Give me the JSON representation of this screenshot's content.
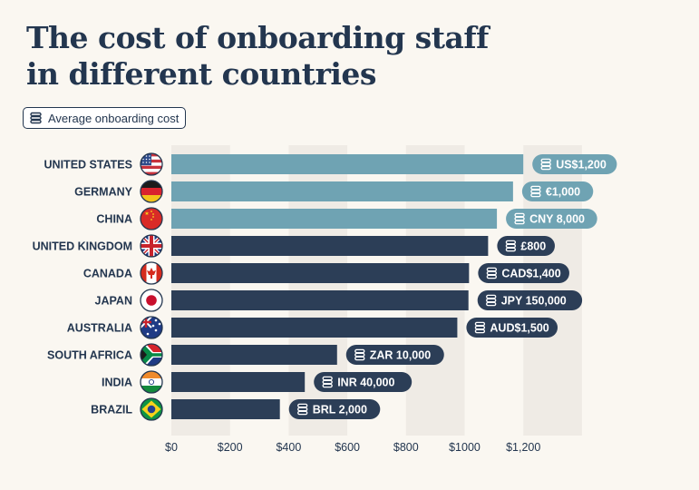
{
  "title": {
    "line1": "The cost of onboarding staff",
    "line2": "in different countries"
  },
  "legend": {
    "label": "Average onboarding cost",
    "icon": "coins-icon"
  },
  "colors": {
    "text": "#23364f",
    "dark_bar": "#2c3e57",
    "light_bar": "#6fa3b3",
    "band": "#efebe5",
    "background": "#faf7f1"
  },
  "chart_data": {
    "type": "bar",
    "orientation": "horizontal",
    "title": "The cost of onboarding staff in different countries",
    "xlabel": "",
    "ylabel": "",
    "xlim": [
      0,
      1400
    ],
    "xticks": [
      0,
      200,
      400,
      600,
      800,
      1000,
      1200
    ],
    "xtick_labels": [
      "$0",
      "$200",
      "$400",
      "$600",
      "$800",
      "$1000",
      "$1,200"
    ],
    "grid": "alternating vertical bands",
    "categories": [
      "UNITED STATES",
      "GERMANY",
      "CHINA",
      "UNITED KINGDOM",
      "CANADA",
      "JAPAN",
      "AUSTRALIA",
      "SOUTH AFRICA",
      "INDIA",
      "BRAZIL"
    ],
    "values": [
      1200,
      1165,
      1110,
      1080,
      1015,
      1013,
      975,
      565,
      455,
      370
    ],
    "local_cost_labels": [
      "US$1,200",
      "€1,000",
      "CNY 8,000",
      "£800",
      "CAD$1,400",
      "JPY 150,000",
      "AUD$1,500",
      "ZAR 10,000",
      "INR 40,000",
      "BRL 2,000"
    ],
    "highlighted": [
      true,
      true,
      true,
      false,
      false,
      false,
      false,
      false,
      false,
      false
    ],
    "flags": [
      "us-flag",
      "de-flag",
      "cn-flag",
      "gb-flag",
      "ca-flag",
      "jp-flag",
      "au-flag",
      "za-flag",
      "in-flag",
      "br-flag"
    ]
  }
}
